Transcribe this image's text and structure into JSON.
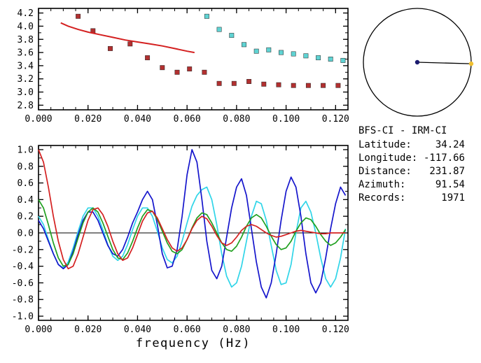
{
  "station_info": {
    "title": "BFS-CI - IRM-CI",
    "rows": [
      {
        "label": "Latitude:",
        "value": "34.24"
      },
      {
        "label": "Longitude:",
        "value": "-117.66"
      },
      {
        "label": "Distance:",
        "value": "231.87"
      },
      {
        "label": "Azimuth:",
        "value": "91.54"
      },
      {
        "label": "Records:",
        "value": "1971"
      }
    ]
  },
  "compass": {
    "azimuth_deg": 91.54,
    "circle_color": "#000000",
    "center_dot_color": "#1b1b6f",
    "edge_dot_color": "#f0c030"
  },
  "chart_data": [
    {
      "type": "scatter",
      "title": "",
      "xlabel": "",
      "ylabel": "",
      "xlim": [
        0,
        0.125
      ],
      "ylim": [
        2.73,
        4.27
      ],
      "xticks": [
        0,
        0.02,
        0.04,
        0.06,
        0.08,
        0.1,
        0.12
      ],
      "xtick_labels": [
        "0.000",
        "0.020",
        "0.040",
        "0.060",
        "0.080",
        "0.100",
        "0.120"
      ],
      "xminor": 0.005,
      "yticks": [
        2.8,
        3.0,
        3.2,
        3.4,
        3.6,
        3.8,
        4.0,
        4.2
      ],
      "ytick_labels": [
        "2.8",
        "3.0",
        "3.2",
        "3.4",
        "3.6",
        "3.8",
        "4.0",
        "4.2"
      ],
      "yminor": 0.1,
      "series": [
        {
          "name": "red-squares",
          "style": "marker",
          "color": "#b23030",
          "x": [
            0.016,
            0.022,
            0.029,
            0.037,
            0.044,
            0.05,
            0.056,
            0.061,
            0.067,
            0.073,
            0.079,
            0.085,
            0.091,
            0.097,
            0.103,
            0.109,
            0.115,
            0.121
          ],
          "y": [
            4.15,
            3.93,
            3.66,
            3.73,
            3.52,
            3.37,
            3.3,
            3.35,
            3.3,
            3.13,
            3.13,
            3.16,
            3.12,
            3.11,
            3.1,
            3.1,
            3.1,
            3.1
          ]
        },
        {
          "name": "cyan-squares",
          "style": "marker",
          "color": "#5fd3d3",
          "x": [
            0.068,
            0.073,
            0.078,
            0.083,
            0.088,
            0.093,
            0.098,
            0.103,
            0.108,
            0.113,
            0.118,
            0.123
          ],
          "y": [
            4.15,
            3.95,
            3.86,
            3.72,
            3.62,
            3.64,
            3.6,
            3.58,
            3.55,
            3.52,
            3.5,
            3.48
          ]
        },
        {
          "name": "red-curve",
          "style": "line",
          "color": "#d42020",
          "x": [
            0.009,
            0.012,
            0.016,
            0.02,
            0.025,
            0.03,
            0.035,
            0.04,
            0.045,
            0.05,
            0.055,
            0.06,
            0.063
          ],
          "y": [
            4.05,
            4.0,
            3.95,
            3.91,
            3.87,
            3.83,
            3.79,
            3.76,
            3.73,
            3.7,
            3.66,
            3.62,
            3.6
          ]
        }
      ]
    },
    {
      "type": "line",
      "title": "",
      "xlabel": "frequency (Hz)",
      "ylabel": "",
      "xlim": [
        0,
        0.125
      ],
      "ylim": [
        -1.05,
        1.05
      ],
      "xticks": [
        0,
        0.02,
        0.04,
        0.06,
        0.08,
        0.1,
        0.12
      ],
      "xtick_labels": [
        "0.000",
        "0.020",
        "0.040",
        "0.060",
        "0.080",
        "0.100",
        "0.120"
      ],
      "xminor": 0.005,
      "yticks": [
        -1.0,
        -0.8,
        -0.6,
        -0.4,
        -0.2,
        0.0,
        0.2,
        0.4,
        0.6,
        0.8,
        1.0
      ],
      "ytick_labels": [
        "-1.0",
        "-0.8",
        "-0.6",
        "-0.4",
        "-0.2",
        "0.0",
        "0.2",
        "0.4",
        "0.6",
        "0.8",
        "1.0"
      ],
      "yminor": 0.1,
      "zero_line": true,
      "x_start": 0,
      "x_step": 0.002,
      "series": [
        {
          "name": "cyan-trace",
          "color": "#30d5e8",
          "values": [
            0.2,
            0.1,
            -0.08,
            -0.25,
            -0.38,
            -0.42,
            -0.35,
            -0.18,
            0.02,
            0.2,
            0.3,
            0.3,
            0.2,
            0.04,
            -0.14,
            -0.28,
            -0.33,
            -0.28,
            -0.14,
            0.04,
            0.2,
            0.3,
            0.3,
            0.2,
            0.02,
            -0.18,
            -0.32,
            -0.36,
            -0.28,
            -0.1,
            0.12,
            0.32,
            0.45,
            0.52,
            0.55,
            0.4,
            0.1,
            -0.25,
            -0.52,
            -0.65,
            -0.6,
            -0.4,
            -0.1,
            0.2,
            0.38,
            0.35,
            0.15,
            -0.15,
            -0.45,
            -0.62,
            -0.6,
            -0.38,
            0.0,
            0.3,
            0.38,
            0.25,
            0.0,
            -0.3,
            -0.55,
            -0.65,
            -0.55,
            -0.3,
            0.05
          ]
        },
        {
          "name": "blue-trace",
          "color": "#1515cc",
          "values": [
            0.15,
            0.05,
            -0.1,
            -0.25,
            -0.38,
            -0.43,
            -0.38,
            -0.22,
            -0.02,
            0.15,
            0.25,
            0.25,
            0.15,
            0.0,
            -0.15,
            -0.25,
            -0.28,
            -0.2,
            -0.05,
            0.12,
            0.25,
            0.4,
            0.5,
            0.4,
            0.1,
            -0.25,
            -0.42,
            -0.4,
            -0.2,
            0.2,
            0.7,
            1.0,
            0.85,
            0.4,
            -0.1,
            -0.45,
            -0.55,
            -0.4,
            -0.05,
            0.3,
            0.55,
            0.65,
            0.45,
            0.05,
            -0.35,
            -0.65,
            -0.78,
            -0.6,
            -0.25,
            0.15,
            0.5,
            0.67,
            0.55,
            0.2,
            -0.25,
            -0.6,
            -0.72,
            -0.6,
            -0.3,
            0.05,
            0.35,
            0.55,
            0.45
          ]
        },
        {
          "name": "green-trace",
          "color": "#20a020",
          "values": [
            0.4,
            0.3,
            0.1,
            -0.12,
            -0.3,
            -0.4,
            -0.38,
            -0.25,
            -0.06,
            0.12,
            0.25,
            0.3,
            0.25,
            0.12,
            -0.04,
            -0.2,
            -0.3,
            -0.32,
            -0.24,
            -0.1,
            0.06,
            0.2,
            0.28,
            0.26,
            0.16,
            0.02,
            -0.12,
            -0.22,
            -0.25,
            -0.2,
            -0.08,
            0.06,
            0.18,
            0.24,
            0.22,
            0.12,
            0.0,
            -0.12,
            -0.2,
            -0.22,
            -0.16,
            -0.05,
            0.08,
            0.18,
            0.22,
            0.18,
            0.08,
            -0.04,
            -0.14,
            -0.2,
            -0.18,
            -0.1,
            0.02,
            0.12,
            0.18,
            0.16,
            0.08,
            -0.02,
            -0.1,
            -0.15,
            -0.12,
            -0.05,
            0.04
          ]
        },
        {
          "name": "red-trace",
          "color": "#d42020",
          "values": [
            1.0,
            0.85,
            0.55,
            0.2,
            -0.1,
            -0.32,
            -0.43,
            -0.4,
            -0.25,
            -0.05,
            0.15,
            0.28,
            0.3,
            0.22,
            0.08,
            -0.1,
            -0.25,
            -0.33,
            -0.3,
            -0.18,
            -0.02,
            0.14,
            0.24,
            0.26,
            0.18,
            0.05,
            -0.08,
            -0.18,
            -0.22,
            -0.18,
            -0.08,
            0.05,
            0.15,
            0.2,
            0.17,
            0.08,
            -0.03,
            -0.12,
            -0.15,
            -0.12,
            -0.05,
            0.03,
            0.08,
            0.1,
            0.08,
            0.04,
            0.0,
            -0.03,
            -0.05,
            -0.04,
            -0.02,
            0.0,
            0.02,
            0.03,
            0.02,
            0.01,
            0.0,
            -0.01,
            -0.01,
            0.0,
            0.0,
            0.0,
            0.0
          ]
        }
      ]
    }
  ]
}
